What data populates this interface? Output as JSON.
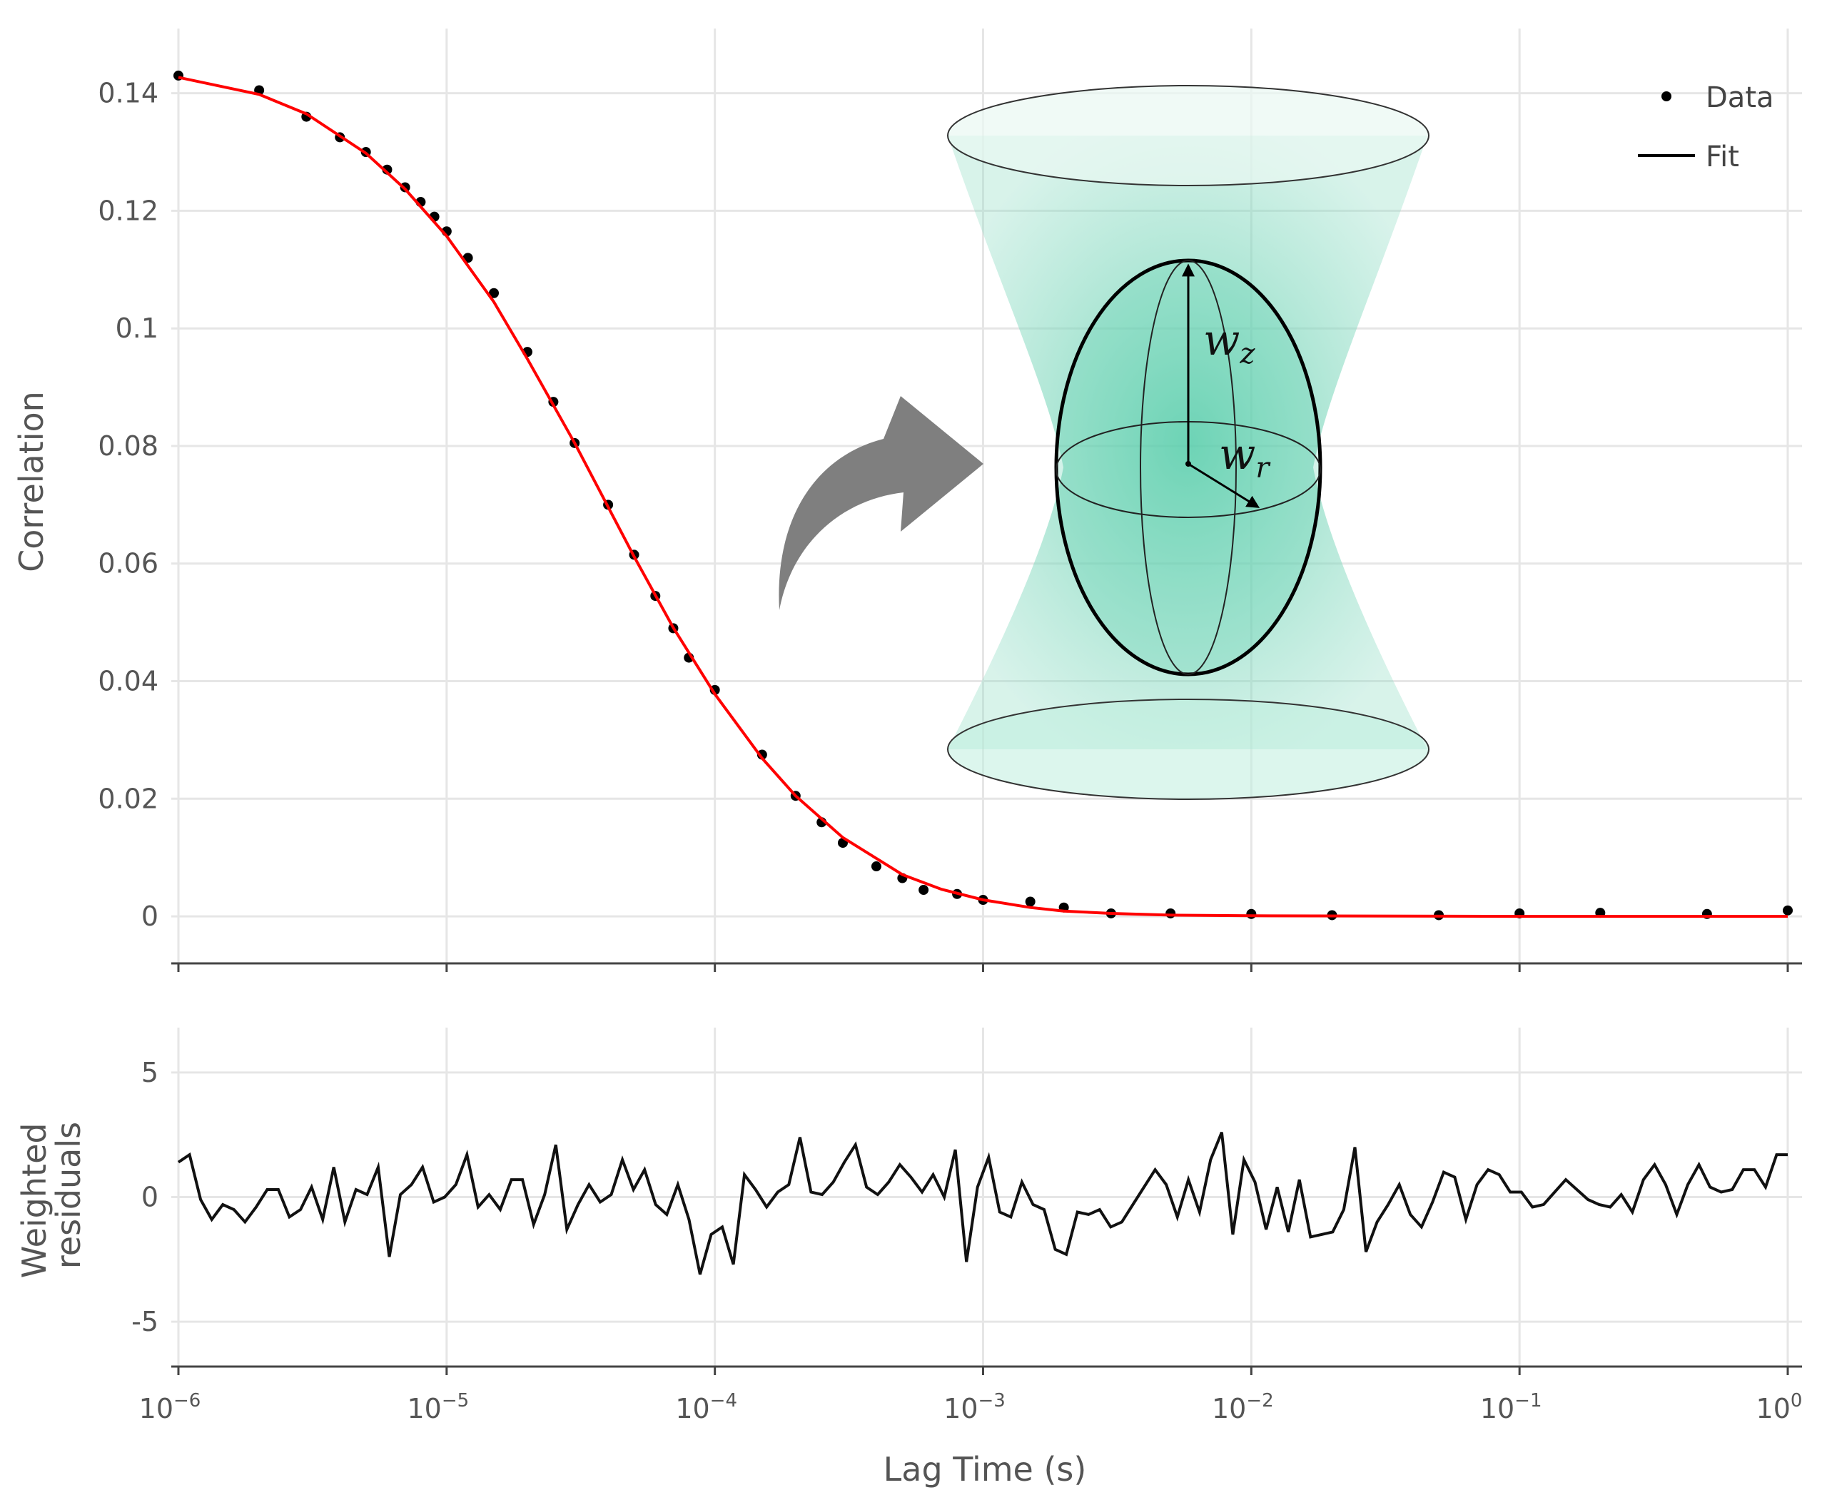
{
  "chart_data": [
    {
      "type": "scatter",
      "panel": "top",
      "ylabel": "Correlation",
      "xlabel": "",
      "xscale": "log",
      "xlim": [
        1e-06,
        1
      ],
      "ylim": [
        -0.008,
        0.151
      ],
      "y_ticks": [
        {
          "value": 0,
          "label": "0"
        },
        {
          "value": 0.02,
          "label": "0.02"
        },
        {
          "value": 0.04,
          "label": "0.04"
        },
        {
          "value": 0.06,
          "label": "0.06"
        },
        {
          "value": 0.08,
          "label": "0.08"
        },
        {
          "value": 0.1,
          "label": "0.1"
        },
        {
          "value": 0.12,
          "label": "0.12"
        },
        {
          "value": 0.14,
          "label": "0.14"
        }
      ],
      "grid": true,
      "legend_position": "top-right",
      "legend": [
        "Data",
        "Fit"
      ],
      "series": [
        {
          "name": "Data",
          "kind": "markers",
          "color": "#000000",
          "x": [
            1e-06,
            2e-06,
            3e-06,
            4e-06,
            5e-06,
            6e-06,
            7e-06,
            8e-06,
            9e-06,
            1e-05,
            1.2e-05,
            1.5e-05,
            2e-05,
            2.5e-05,
            3e-05,
            4e-05,
            5e-05,
            6e-05,
            7e-05,
            8e-05,
            0.0001,
            0.00015,
            0.0002,
            0.00025,
            0.0003,
            0.0004,
            0.0005,
            0.0006,
            0.0008,
            0.001,
            0.0015,
            0.002,
            0.003,
            0.005,
            0.01,
            0.02,
            0.05,
            0.1,
            0.2,
            0.5,
            1
          ],
          "y": [
            0.143,
            0.1405,
            0.136,
            0.1325,
            0.13,
            0.127,
            0.124,
            0.1215,
            0.119,
            0.1165,
            0.112,
            0.106,
            0.096,
            0.0875,
            0.0805,
            0.07,
            0.0615,
            0.0545,
            0.049,
            0.044,
            0.0385,
            0.0275,
            0.0205,
            0.016,
            0.0125,
            0.0085,
            0.0065,
            0.0045,
            0.0038,
            0.0028,
            0.0025,
            0.0015,
            0.0005,
            0.0005,
            0.0004,
            0.0002,
            0.0002,
            0.0005,
            0.0006,
            0.0004,
            0.001
          ]
        },
        {
          "name": "Fit",
          "kind": "line",
          "color": "#ff0000",
          "x": [
            1e-06,
            2e-06,
            3e-06,
            5e-06,
            7e-06,
            1e-05,
            1.5e-05,
            2e-05,
            3e-05,
            5e-05,
            7e-05,
            0.0001,
            0.00015,
            0.0002,
            0.0003,
            0.0005,
            0.0007,
            0.001,
            0.0015,
            0.002,
            0.003,
            0.005,
            0.01,
            0.1,
            1
          ],
          "y": [
            0.1427,
            0.1398,
            0.1365,
            0.1298,
            0.1237,
            0.1157,
            0.1045,
            0.0948,
            0.0805,
            0.0612,
            0.0491,
            0.0378,
            0.0269,
            0.0205,
            0.0134,
            0.0071,
            0.0046,
            0.0028,
            0.0015,
            0.0009,
            0.0005,
            0.0002,
            0.0001,
            0.0,
            0.0
          ]
        }
      ]
    },
    {
      "type": "line",
      "panel": "bottom",
      "ylabel": "Weighted\nresiduals",
      "xlabel": "Lag Time (s)",
      "xscale": "log",
      "xlim": [
        1e-06,
        1
      ],
      "ylim": [
        -6.8,
        6.8
      ],
      "y_ticks": [
        {
          "value": -5,
          "label": "-5"
        },
        {
          "value": 0,
          "label": "0"
        },
        {
          "value": 5,
          "label": "5"
        }
      ],
      "x_ticks": [
        {
          "value": 1e-06,
          "base": "10",
          "exp": "−6"
        },
        {
          "value": 1e-05,
          "base": "10",
          "exp": "−5"
        },
        {
          "value": 0.0001,
          "base": "10",
          "exp": "−4"
        },
        {
          "value": 0.001,
          "base": "10",
          "exp": "−3"
        },
        {
          "value": 0.01,
          "base": "10",
          "exp": "−2"
        },
        {
          "value": 0.1,
          "base": "10",
          "exp": "−1"
        },
        {
          "value": 1,
          "base": "10",
          "exp": "0"
        }
      ],
      "grid": true,
      "series": [
        {
          "color": "#111111",
          "y": [
            1.4,
            1.7,
            -0.1,
            -0.9,
            -0.3,
            -0.5,
            -1.0,
            -0.4,
            0.3,
            0.3,
            -0.8,
            -0.5,
            0.4,
            -0.9,
            1.2,
            -1.0,
            0.3,
            0.1,
            1.2,
            -2.4,
            0.1,
            0.5,
            1.2,
            -0.2,
            0.0,
            0.5,
            1.7,
            -0.4,
            0.1,
            -0.5,
            0.7,
            0.7,
            -1.1,
            0.1,
            2.1,
            -1.3,
            -0.3,
            0.5,
            -0.2,
            0.1,
            1.5,
            0.3,
            1.1,
            -0.3,
            -0.7,
            0.5,
            -0.9,
            -3.1,
            -1.5,
            -1.2,
            -2.7,
            0.9,
            0.3,
            -0.4,
            0.2,
            0.5,
            2.4,
            0.2,
            0.1,
            0.6,
            1.4,
            2.1,
            0.4,
            0.1,
            0.6,
            1.3,
            0.8,
            0.2,
            0.9,
            0.0,
            1.9,
            -2.6,
            0.4,
            1.6,
            -0.6,
            -0.8,
            0.6,
            -0.3,
            -0.5,
            -2.1,
            -2.3,
            -0.6,
            -0.7,
            -0.5,
            -1.2,
            -1.0,
            -0.3,
            0.4,
            1.1,
            0.5,
            -0.8,
            0.7,
            -0.6,
            1.5,
            2.6,
            -1.5,
            1.5,
            0.6,
            -1.3,
            0.4,
            -1.4,
            0.7,
            -1.6,
            -1.5,
            -1.4,
            -0.5,
            2.0,
            -2.2,
            -1.0,
            -0.3,
            0.5,
            -0.7,
            -1.2,
            -0.2,
            1.0,
            0.8,
            -0.9,
            0.5,
            1.1,
            0.9,
            0.2,
            0.2,
            -0.4,
            -0.3,
            0.2,
            0.7,
            0.3,
            -0.1,
            -0.3,
            -0.4,
            0.1,
            -0.6,
            0.7,
            1.3,
            0.5,
            -0.7,
            0.5,
            1.3,
            0.4,
            0.2,
            0.3,
            1.1,
            1.1,
            0.4,
            1.7,
            1.7
          ]
        }
      ]
    }
  ],
  "legend": {
    "data_label": "Data",
    "fit_label": "Fit"
  },
  "inset": {
    "wz_base": "w",
    "wz_sub": "z",
    "wr_base": "w",
    "wr_sub": "r",
    "fill_color": "#7fd6bf",
    "arrow_color": "#7f7f7f"
  }
}
